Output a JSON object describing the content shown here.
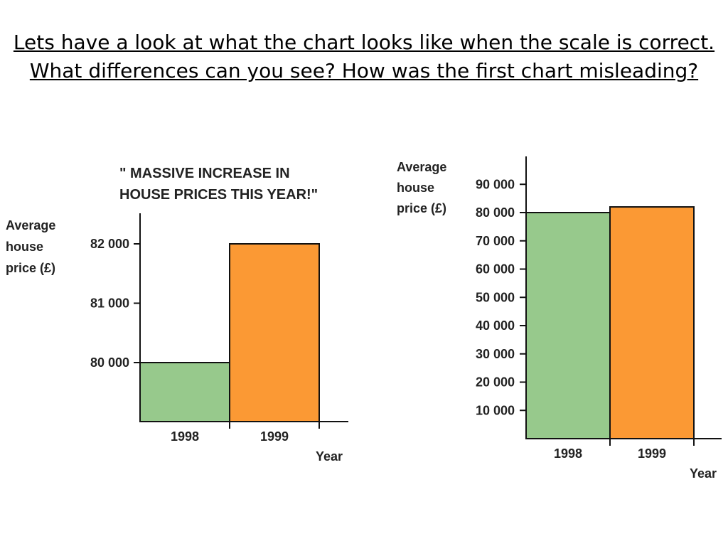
{
  "slide": {
    "heading": "Lets have a look at what the chart looks like when the scale is correct. What differences can you see? How was the first chart misleading?"
  },
  "colors": {
    "bar_1998": "#97c98c",
    "bar_1999": "#fb9934",
    "axis": "#111111"
  },
  "chart_data": [
    {
      "type": "bar",
      "title": "\" MASSIVE INCREASE  IN HOUSE PRICES THIS YEAR!\"",
      "title_lines": [
        "\" MASSIVE INCREASE  IN",
        "HOUSE PRICES THIS YEAR!\""
      ],
      "ylabel_lines": [
        "Average",
        "house",
        "price (£)"
      ],
      "xlabel": "Year",
      "categories": [
        "1998",
        "1999"
      ],
      "values": [
        80000,
        82000
      ],
      "ylim": [
        79000,
        82500
      ],
      "yticks": [
        80000,
        81000,
        82000
      ],
      "ytick_labels": [
        "80 000",
        "81 000",
        "82 000"
      ]
    },
    {
      "type": "bar",
      "title": "",
      "title_lines": [],
      "ylabel_lines": [
        "Average",
        "house",
        "price (£)"
      ],
      "xlabel": "Year",
      "categories": [
        "1998",
        "1999"
      ],
      "values": [
        80000,
        82000
      ],
      "ylim": [
        0,
        95000
      ],
      "yticks": [
        10000,
        20000,
        30000,
        40000,
        50000,
        60000,
        70000,
        80000,
        90000
      ],
      "ytick_labels": [
        "10 000",
        "20 000",
        "30 000",
        "40 000",
        "50 000",
        "60 000",
        "70 000",
        "80 000",
        "90 000"
      ]
    }
  ]
}
